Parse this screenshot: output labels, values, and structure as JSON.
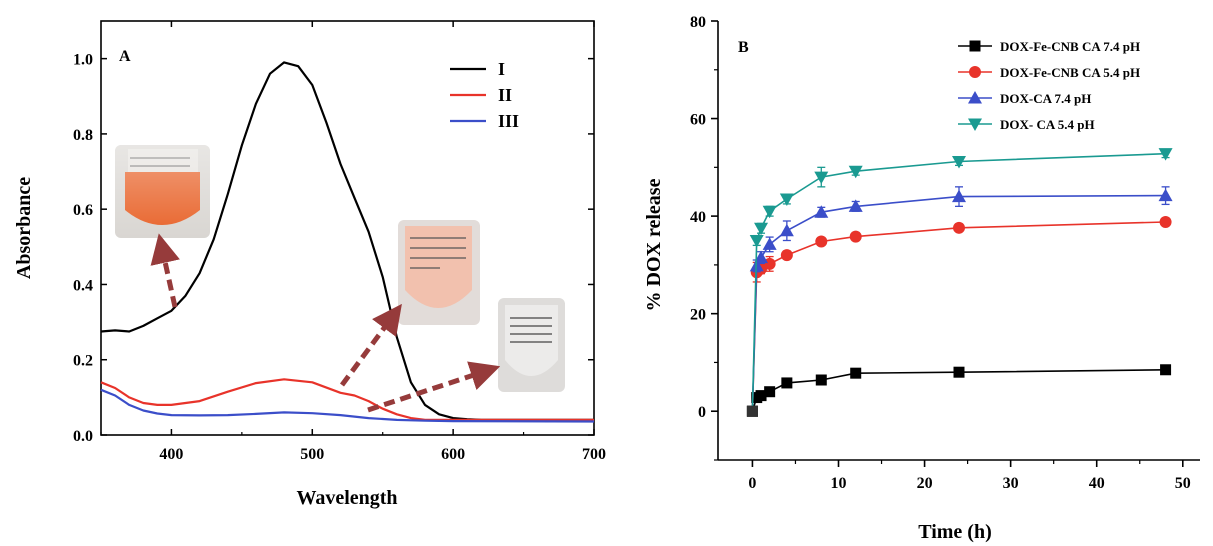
{
  "chart_data": [
    {
      "type": "line",
      "panel_label": "A",
      "xlabel": "Wavelength",
      "ylabel": "Absorbance",
      "xlim": [
        350,
        700
      ],
      "ylim": [
        0,
        1.1
      ],
      "xticks": [
        "400",
        "500",
        "600",
        "700"
      ],
      "yticks": [
        "0.0",
        "0.2",
        "0.4",
        "0.6",
        "0.8",
        "1.0"
      ],
      "legend": "top-right",
      "series": [
        {
          "name": "I",
          "color": "#000000",
          "x": [
            350,
            360,
            370,
            380,
            390,
            400,
            410,
            420,
            430,
            440,
            450,
            460,
            470,
            480,
            490,
            500,
            510,
            520,
            530,
            540,
            550,
            560,
            570,
            580,
            590,
            600,
            610,
            620,
            700
          ],
          "y": [
            0.275,
            0.278,
            0.275,
            0.29,
            0.31,
            0.33,
            0.37,
            0.43,
            0.52,
            0.64,
            0.77,
            0.88,
            0.96,
            0.99,
            0.98,
            0.93,
            0.83,
            0.72,
            0.63,
            0.54,
            0.42,
            0.26,
            0.14,
            0.08,
            0.055,
            0.045,
            0.042,
            0.04,
            0.04
          ]
        },
        {
          "name": "II",
          "color": "#e8332a",
          "x": [
            350,
            360,
            370,
            380,
            390,
            400,
            420,
            440,
            460,
            480,
            500,
            520,
            530,
            540,
            550,
            560,
            570,
            580,
            600,
            700
          ],
          "y": [
            0.14,
            0.125,
            0.1,
            0.085,
            0.08,
            0.08,
            0.09,
            0.115,
            0.138,
            0.148,
            0.14,
            0.112,
            0.105,
            0.09,
            0.07,
            0.055,
            0.045,
            0.04,
            0.04,
            0.04
          ]
        },
        {
          "name": "III",
          "color": "#3b4ec9",
          "x": [
            350,
            360,
            370,
            380,
            390,
            400,
            420,
            440,
            460,
            480,
            500,
            520,
            540,
            560,
            580,
            600,
            700
          ],
          "y": [
            0.12,
            0.105,
            0.08,
            0.065,
            0.057,
            0.053,
            0.052,
            0.053,
            0.056,
            0.06,
            0.058,
            0.053,
            0.045,
            0.04,
            0.038,
            0.037,
            0.036
          ]
        }
      ]
    },
    {
      "type": "line",
      "panel_label": "B",
      "xlabel": "Time (h)",
      "ylabel": "% DOX release",
      "xlim": [
        -4,
        52
      ],
      "ylim": [
        -10,
        80
      ],
      "xticks": [
        "0",
        "10",
        "20",
        "30",
        "40",
        "50"
      ],
      "yticks": [
        "0",
        "20",
        "40",
        "60",
        "80"
      ],
      "legend": "top-right",
      "x": [
        0,
        0.5,
        1,
        2,
        4,
        8,
        12,
        24,
        48
      ],
      "series": [
        {
          "name": "DOX-Fe-CNB CA 7.4 pH",
          "color": "#000000",
          "marker": "square",
          "values": [
            0,
            2.8,
            3.2,
            4.0,
            5.8,
            6.4,
            7.8,
            8.0,
            8.5
          ],
          "errors": [
            0,
            0.4,
            0.4,
            0.4,
            0.5,
            0.5,
            0.5,
            0.5,
            0.5
          ]
        },
        {
          "name": "DOX-Fe-CNB CA 5.4 pH",
          "color": "#e8332a",
          "marker": "circle",
          "values": [
            0,
            28.5,
            29.2,
            30.2,
            32.0,
            34.8,
            35.8,
            37.6,
            38.8
          ],
          "errors": [
            0,
            2.0,
            1.0,
            1.5,
            0.8,
            0.8,
            0.8,
            0.8,
            0.8
          ]
        },
        {
          "name": "DOX-CA 7.4 pH",
          "color": "#3b4ec9",
          "marker": "triangle-up",
          "values": [
            0,
            29.8,
            31.5,
            34.2,
            37.0,
            40.8,
            42.0,
            44.0,
            44.2
          ],
          "errors": [
            0,
            1.2,
            1.2,
            1.5,
            2.0,
            1.0,
            1.0,
            2.0,
            1.8
          ]
        },
        {
          "name": "DOX- CA 5.4 pH",
          "color": "#1a9a91",
          "marker": "triangle-down",
          "values": [
            0,
            35.0,
            37.5,
            41.0,
            43.5,
            48.0,
            49.2,
            51.2,
            52.8
          ],
          "errors": [
            0,
            1.0,
            1.0,
            1.0,
            1.0,
            2.0,
            0.8,
            0.8,
            0.8
          ]
        }
      ]
    }
  ],
  "insets": [
    {
      "name": "tube-orange",
      "color": "#e8632a"
    },
    {
      "name": "tube-pink",
      "color": "#f2c1ae"
    },
    {
      "name": "tube-clear",
      "color": "#ecebea"
    }
  ],
  "arrow_color": "#963b3b"
}
